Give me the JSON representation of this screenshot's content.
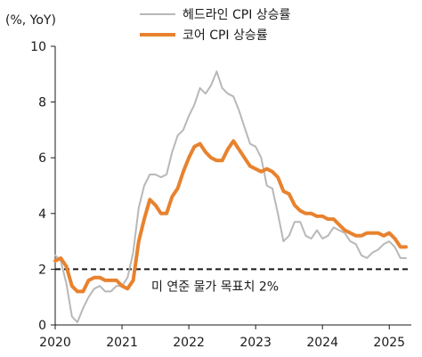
{
  "chart_data": {
    "type": "line",
    "unit_label": "(%, YoY)",
    "title": "",
    "xlabel": "",
    "ylabel": "",
    "xlim": [
      2020.0,
      2025.33
    ],
    "ylim": [
      0,
      10
    ],
    "x_ticks": [
      2020,
      2021,
      2022,
      2023,
      2024,
      2025
    ],
    "y_ticks": [
      0,
      2,
      4,
      6,
      8,
      10
    ],
    "grid": false,
    "legend_position": "top",
    "x": [
      2020.0,
      2020.083,
      2020.167,
      2020.25,
      2020.333,
      2020.417,
      2020.5,
      2020.583,
      2020.667,
      2020.75,
      2020.833,
      2020.917,
      2021.0,
      2021.083,
      2021.167,
      2021.25,
      2021.333,
      2021.417,
      2021.5,
      2021.583,
      2021.667,
      2021.75,
      2021.833,
      2021.917,
      2022.0,
      2022.083,
      2022.167,
      2022.25,
      2022.333,
      2022.417,
      2022.5,
      2022.583,
      2022.667,
      2022.75,
      2022.833,
      2022.917,
      2023.0,
      2023.083,
      2023.167,
      2023.25,
      2023.333,
      2023.417,
      2023.5,
      2023.583,
      2023.667,
      2023.75,
      2023.833,
      2023.917,
      2024.0,
      2024.083,
      2024.167,
      2024.25,
      2024.333,
      2024.417,
      2024.5,
      2024.583,
      2024.667,
      2024.75,
      2024.833,
      2024.917,
      2025.0,
      2025.083,
      2025.167,
      2025.25
    ],
    "series": [
      {
        "name": "헤드라인 CPI 상승률",
        "color": "#b8b8b8",
        "values": [
          2.5,
          2.3,
          1.5,
          0.3,
          0.1,
          0.6,
          1.0,
          1.3,
          1.4,
          1.2,
          1.2,
          1.4,
          1.4,
          1.7,
          2.6,
          4.2,
          5.0,
          5.4,
          5.4,
          5.3,
          5.4,
          6.2,
          6.8,
          7.0,
          7.5,
          7.9,
          8.5,
          8.3,
          8.6,
          9.1,
          8.5,
          8.3,
          8.2,
          7.7,
          7.1,
          6.5,
          6.4,
          6.0,
          5.0,
          4.9,
          4.0,
          3.0,
          3.2,
          3.7,
          3.7,
          3.2,
          3.1,
          3.4,
          3.1,
          3.2,
          3.5,
          3.4,
          3.3,
          3.0,
          2.9,
          2.5,
          2.4,
          2.6,
          2.7,
          2.9,
          3.0,
          2.8,
          2.4,
          2.4
        ]
      },
      {
        "name": "코어 CPI 상승률",
        "color": "#e8822e",
        "values": [
          2.3,
          2.4,
          2.1,
          1.4,
          1.2,
          1.2,
          1.6,
          1.7,
          1.7,
          1.6,
          1.6,
          1.6,
          1.4,
          1.3,
          1.6,
          3.0,
          3.8,
          4.5,
          4.3,
          4.0,
          4.0,
          4.6,
          4.9,
          5.5,
          6.0,
          6.4,
          6.5,
          6.2,
          6.0,
          5.9,
          5.9,
          6.3,
          6.6,
          6.3,
          6.0,
          5.7,
          5.6,
          5.5,
          5.6,
          5.5,
          5.3,
          4.8,
          4.7,
          4.3,
          4.1,
          4.0,
          4.0,
          3.9,
          3.9,
          3.8,
          3.8,
          3.6,
          3.4,
          3.3,
          3.2,
          3.2,
          3.3,
          3.3,
          3.3,
          3.2,
          3.3,
          3.1,
          2.8,
          2.8
        ]
      }
    ],
    "reference_line": {
      "value": 2.0,
      "label": "미 연준 물가 목표치 2%",
      "color": "#1a1a1a"
    }
  }
}
